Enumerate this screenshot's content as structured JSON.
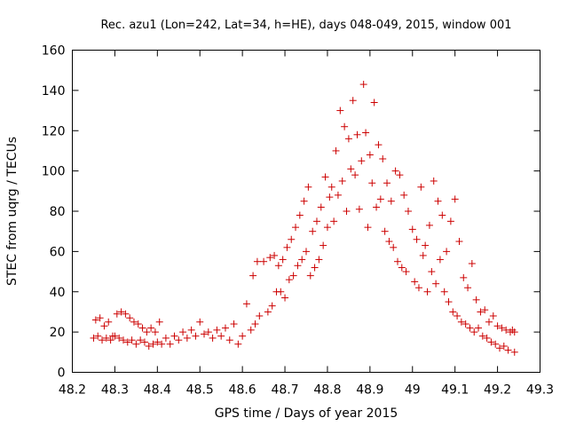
{
  "chart_data": {
    "type": "scatter",
    "title": "Rec. azu1 (Lon=242, Lat=34, h=HE), days 048-049, 2015, window 001",
    "xlabel": "GPS time / Days of year 2015",
    "ylabel": "STEC from uqrg / TECUs",
    "xlim": [
      48.2,
      49.3
    ],
    "ylim": [
      0,
      160
    ],
    "x_ticks": [
      "48.2",
      "48.3",
      "48.4",
      "48.5",
      "48.6",
      "48.7",
      "48.8",
      "48.9",
      "49",
      "49.1",
      "49.2",
      "49.3"
    ],
    "y_ticks": [
      "0",
      "20",
      "40",
      "60",
      "80",
      "100",
      "120",
      "140",
      "160"
    ],
    "grid": false,
    "marker": "+",
    "color": "#cc0000",
    "series": [
      {
        "name": "STEC",
        "points": [
          [
            48.25,
            17
          ],
          [
            48.255,
            26
          ],
          [
            48.26,
            18
          ],
          [
            48.265,
            27
          ],
          [
            48.27,
            16
          ],
          [
            48.275,
            23
          ],
          [
            48.28,
            17
          ],
          [
            48.285,
            25
          ],
          [
            48.29,
            16
          ],
          [
            48.295,
            18
          ],
          [
            48.3,
            18
          ],
          [
            48.305,
            29
          ],
          [
            48.31,
            17
          ],
          [
            48.315,
            30
          ],
          [
            48.32,
            16
          ],
          [
            48.325,
            29
          ],
          [
            48.33,
            15
          ],
          [
            48.335,
            27
          ],
          [
            48.34,
            16
          ],
          [
            48.345,
            25
          ],
          [
            48.35,
            14
          ],
          [
            48.355,
            24
          ],
          [
            48.36,
            16
          ],
          [
            48.365,
            22
          ],
          [
            48.37,
            15
          ],
          [
            48.375,
            20
          ],
          [
            48.38,
            13
          ],
          [
            48.385,
            22
          ],
          [
            48.39,
            14
          ],
          [
            48.395,
            20
          ],
          [
            48.4,
            15
          ],
          [
            48.405,
            25
          ],
          [
            48.41,
            14
          ],
          [
            48.42,
            17
          ],
          [
            48.43,
            14
          ],
          [
            48.44,
            18
          ],
          [
            48.45,
            16
          ],
          [
            48.46,
            20
          ],
          [
            48.47,
            17
          ],
          [
            48.48,
            21
          ],
          [
            48.49,
            18
          ],
          [
            48.5,
            25
          ],
          [
            48.51,
            19
          ],
          [
            48.52,
            20
          ],
          [
            48.53,
            17
          ],
          [
            48.54,
            21
          ],
          [
            48.55,
            18
          ],
          [
            48.56,
            22
          ],
          [
            48.57,
            16
          ],
          [
            48.58,
            24
          ],
          [
            48.59,
            14
          ],
          [
            48.6,
            18
          ],
          [
            48.61,
            34
          ],
          [
            48.62,
            21
          ],
          [
            48.625,
            48
          ],
          [
            48.63,
            24
          ],
          [
            48.635,
            55
          ],
          [
            48.64,
            28
          ],
          [
            48.65,
            55
          ],
          [
            48.66,
            30
          ],
          [
            48.665,
            57
          ],
          [
            48.67,
            33
          ],
          [
            48.675,
            58
          ],
          [
            48.68,
            40
          ],
          [
            48.685,
            53
          ],
          [
            48.69,
            40
          ],
          [
            48.695,
            56
          ],
          [
            48.7,
            37
          ],
          [
            48.705,
            62
          ],
          [
            48.71,
            46
          ],
          [
            48.715,
            66
          ],
          [
            48.72,
            48
          ],
          [
            48.725,
            72
          ],
          [
            48.73,
            53
          ],
          [
            48.735,
            78
          ],
          [
            48.74,
            56
          ],
          [
            48.745,
            85
          ],
          [
            48.75,
            60
          ],
          [
            48.755,
            92
          ],
          [
            48.76,
            48
          ],
          [
            48.765,
            70
          ],
          [
            48.77,
            52
          ],
          [
            48.775,
            75
          ],
          [
            48.78,
            56
          ],
          [
            48.785,
            82
          ],
          [
            48.79,
            63
          ],
          [
            48.795,
            97
          ],
          [
            48.8,
            72
          ],
          [
            48.805,
            87
          ],
          [
            48.81,
            92
          ],
          [
            48.815,
            75
          ],
          [
            48.82,
            110
          ],
          [
            48.825,
            88
          ],
          [
            48.83,
            130
          ],
          [
            48.835,
            95
          ],
          [
            48.84,
            122
          ],
          [
            48.845,
            80
          ],
          [
            48.85,
            116
          ],
          [
            48.855,
            101
          ],
          [
            48.86,
            135
          ],
          [
            48.865,
            98
          ],
          [
            48.87,
            118
          ],
          [
            48.875,
            81
          ],
          [
            48.88,
            105
          ],
          [
            48.885,
            143
          ],
          [
            48.89,
            119
          ],
          [
            48.895,
            72
          ],
          [
            48.9,
            108
          ],
          [
            48.905,
            94
          ],
          [
            48.91,
            134
          ],
          [
            48.915,
            82
          ],
          [
            48.92,
            113
          ],
          [
            48.925,
            86
          ],
          [
            48.93,
            106
          ],
          [
            48.935,
            70
          ],
          [
            48.94,
            94
          ],
          [
            48.945,
            65
          ],
          [
            48.95,
            85
          ],
          [
            48.955,
            62
          ],
          [
            48.96,
            100
          ],
          [
            48.965,
            55
          ],
          [
            48.97,
            98
          ],
          [
            48.975,
            52
          ],
          [
            48.98,
            88
          ],
          [
            48.985,
            50
          ],
          [
            48.99,
            80
          ],
          [
            49.0,
            71
          ],
          [
            49.005,
            45
          ],
          [
            49.01,
            66
          ],
          [
            49.015,
            42
          ],
          [
            49.02,
            92
          ],
          [
            49.025,
            58
          ],
          [
            49.03,
            63
          ],
          [
            49.035,
            40
          ],
          [
            49.04,
            73
          ],
          [
            49.045,
            50
          ],
          [
            49.05,
            95
          ],
          [
            49.055,
            44
          ],
          [
            49.06,
            85
          ],
          [
            49.065,
            56
          ],
          [
            49.07,
            78
          ],
          [
            49.075,
            40
          ],
          [
            49.08,
            60
          ],
          [
            49.085,
            35
          ],
          [
            49.09,
            75
          ],
          [
            49.095,
            30
          ],
          [
            49.1,
            86
          ],
          [
            49.105,
            28
          ],
          [
            49.11,
            65
          ],
          [
            49.115,
            25
          ],
          [
            49.12,
            47
          ],
          [
            49.125,
            24
          ],
          [
            49.13,
            42
          ],
          [
            49.135,
            22
          ],
          [
            49.14,
            54
          ],
          [
            49.145,
            20
          ],
          [
            49.15,
            36
          ],
          [
            49.155,
            22
          ],
          [
            49.16,
            30
          ],
          [
            49.165,
            18
          ],
          [
            49.17,
            31
          ],
          [
            49.175,
            17
          ],
          [
            49.18,
            25
          ],
          [
            49.185,
            15
          ],
          [
            49.19,
            28
          ],
          [
            49.195,
            14
          ],
          [
            49.2,
            23
          ],
          [
            49.205,
            12
          ],
          [
            49.21,
            22
          ],
          [
            49.215,
            13
          ],
          [
            49.22,
            21
          ],
          [
            49.225,
            11
          ],
          [
            49.23,
            20
          ],
          [
            49.235,
            21
          ],
          [
            49.24,
            10
          ],
          [
            49.24,
            20
          ]
        ]
      }
    ]
  }
}
